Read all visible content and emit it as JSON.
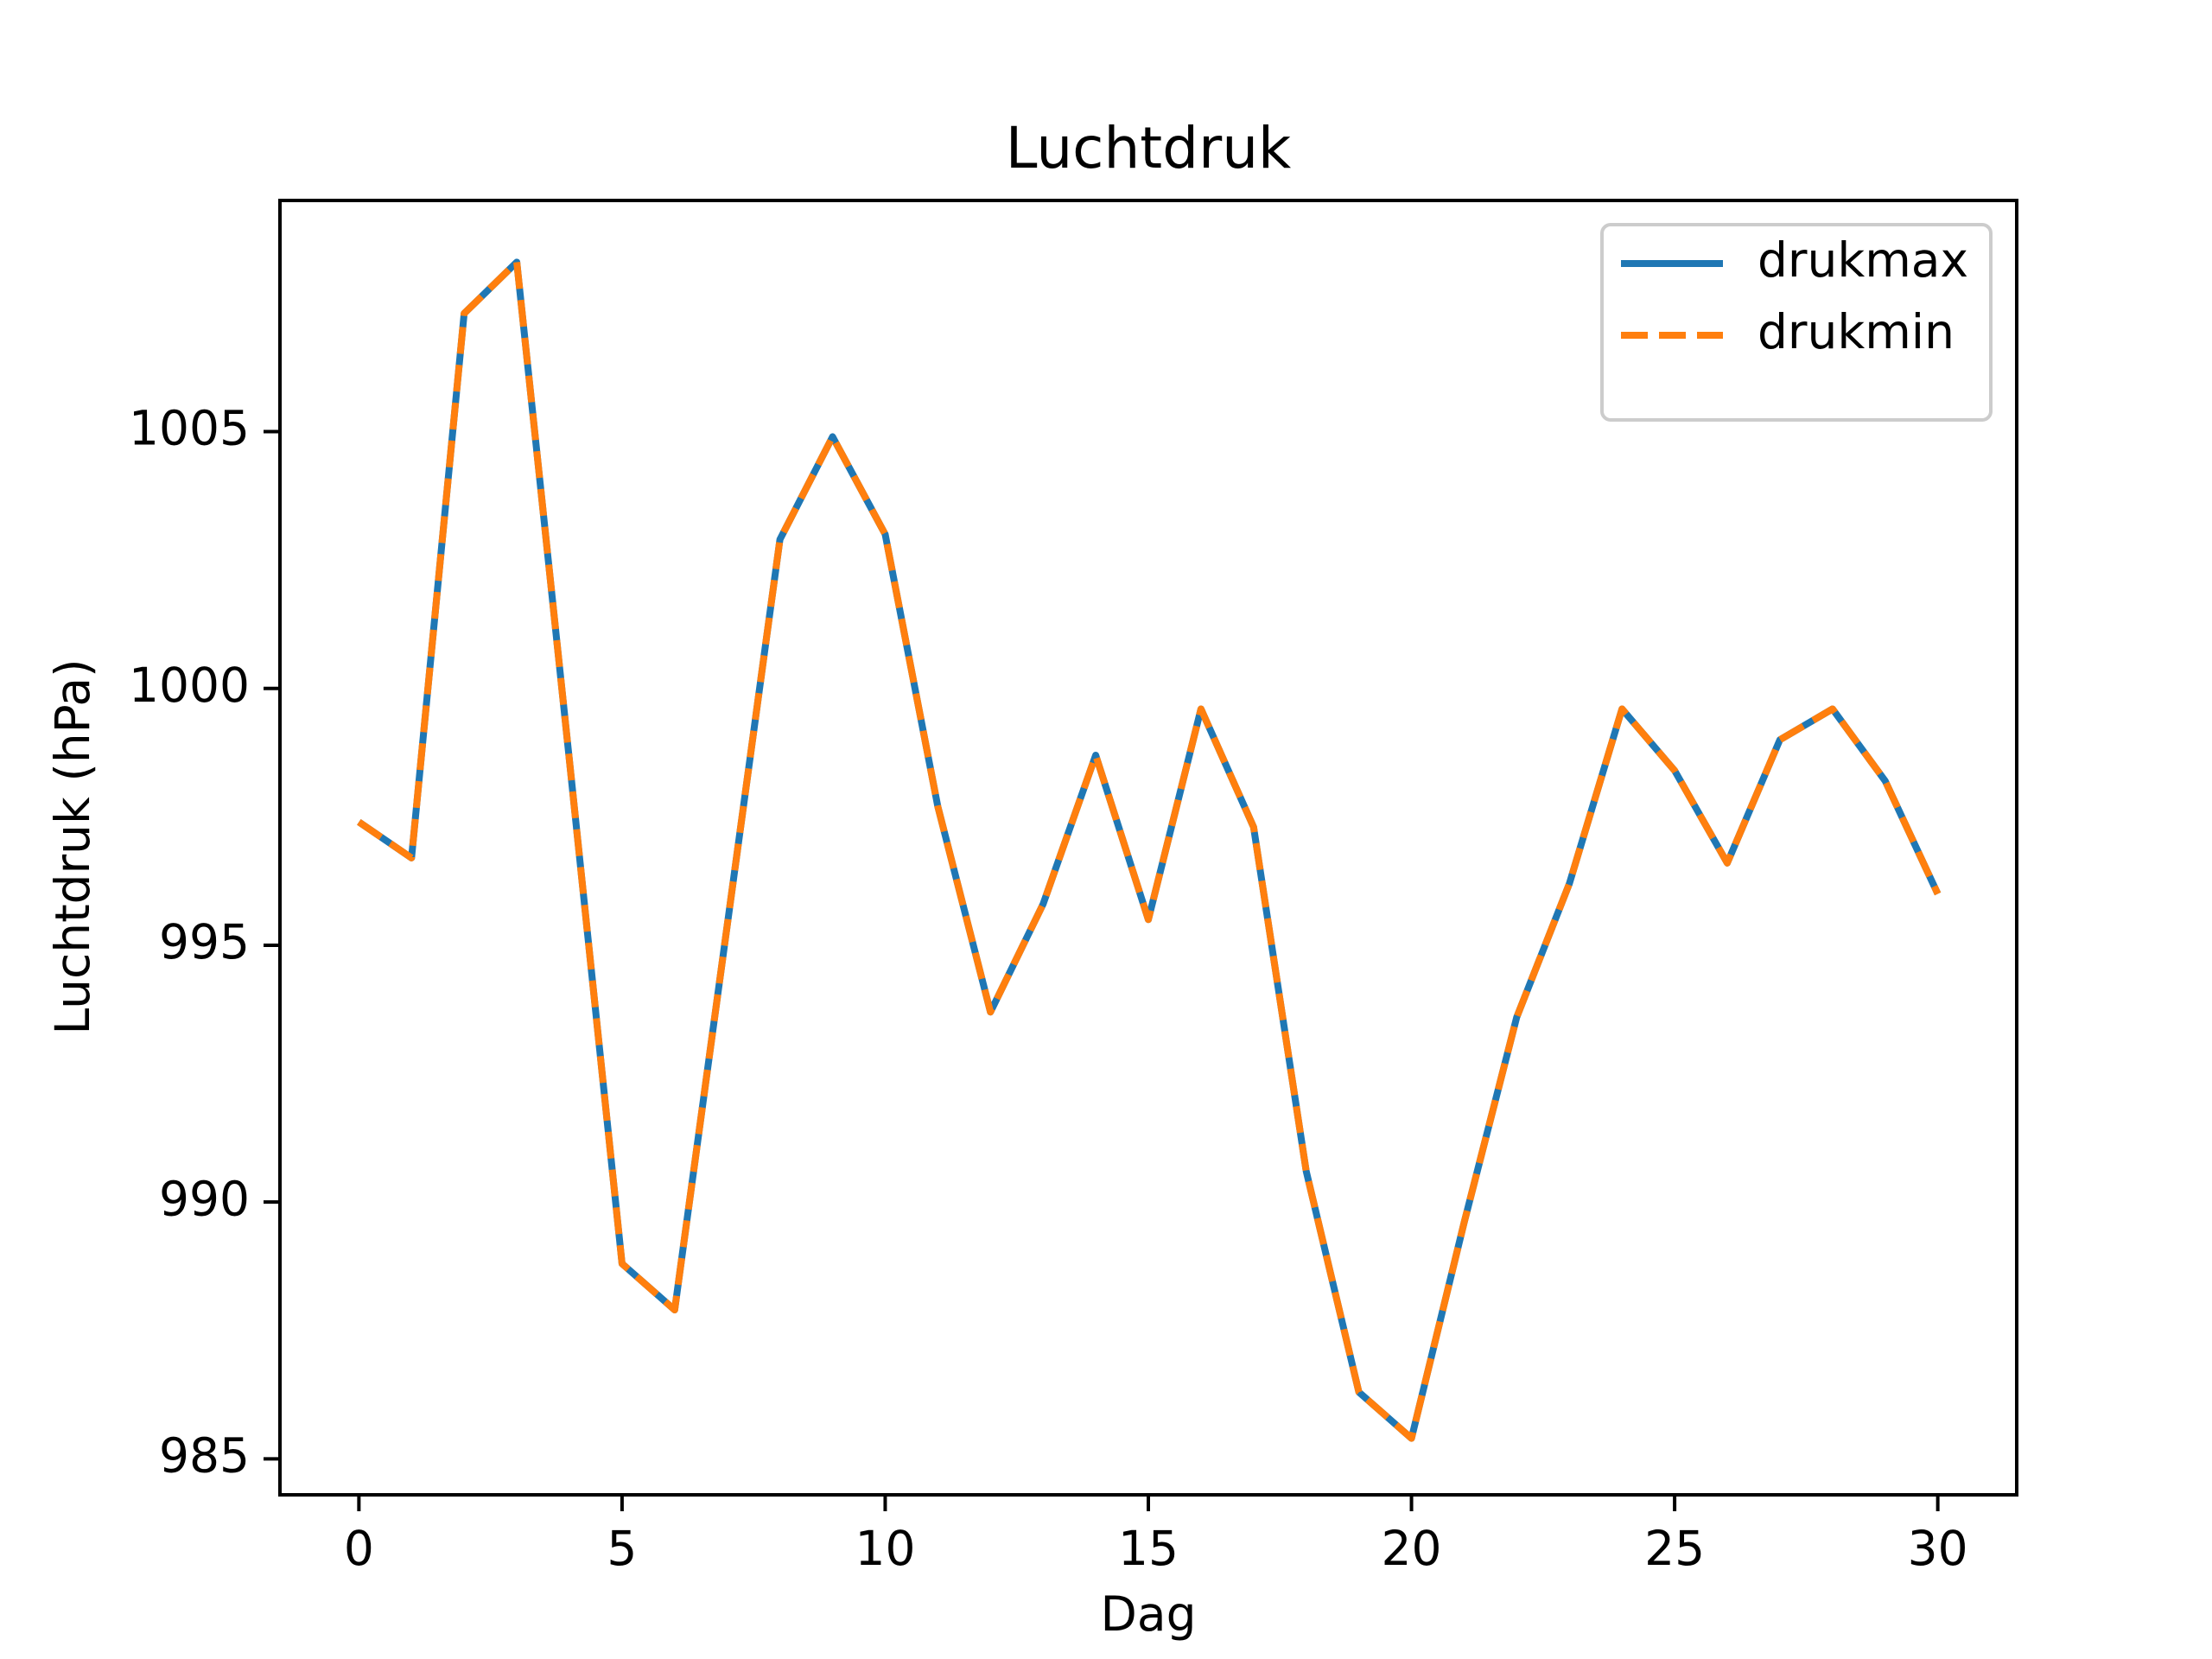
{
  "chart_data": {
    "type": "line",
    "title": "Luchtdruk",
    "xlabel": "Dag",
    "ylabel": "Luchtdruk (hPa)",
    "x": [
      0,
      1,
      2,
      3,
      4,
      5,
      6,
      7,
      8,
      9,
      10,
      11,
      12,
      13,
      14,
      15,
      16,
      17,
      18,
      19,
      20,
      21,
      22,
      23,
      24,
      25,
      26,
      27,
      28,
      29,
      30
    ],
    "series": [
      {
        "name": "drukmax",
        "color": "#1f77b4",
        "linestyle": "solid",
        "values": [
          997.4,
          996.7,
          1007.3,
          1008.3,
          998.6,
          988.8,
          987.9,
          995.4,
          1002.9,
          1004.9,
          1003.0,
          997.7,
          993.7,
          995.8,
          998.7,
          995.5,
          999.6,
          997.3,
          990.6,
          986.3,
          985.4,
          989.6,
          993.6,
          996.2,
          999.6,
          998.4,
          996.6,
          999.0,
          999.6,
          998.2,
          996.0
        ]
      },
      {
        "name": "drukmin",
        "color": "#ff7f0e",
        "linestyle": "dashed",
        "values": [
          997.4,
          996.7,
          1007.3,
          1008.3,
          998.6,
          988.8,
          987.9,
          995.4,
          1002.9,
          1004.9,
          1003.0,
          997.7,
          993.7,
          995.8,
          998.7,
          995.5,
          999.6,
          997.3,
          990.6,
          986.3,
          985.4,
          989.6,
          993.6,
          996.2,
          999.6,
          998.4,
          996.6,
          999.0,
          999.6,
          998.2,
          996.0
        ]
      }
    ],
    "xlim": [
      -1.5,
      31.5
    ],
    "xticks": [
      0,
      5,
      10,
      15,
      20,
      25,
      30
    ],
    "ylim": [
      984.3,
      1009.5
    ],
    "yticks": [
      985,
      990,
      995,
      1000,
      1005
    ],
    "grid": false,
    "legend": "upper right"
  }
}
